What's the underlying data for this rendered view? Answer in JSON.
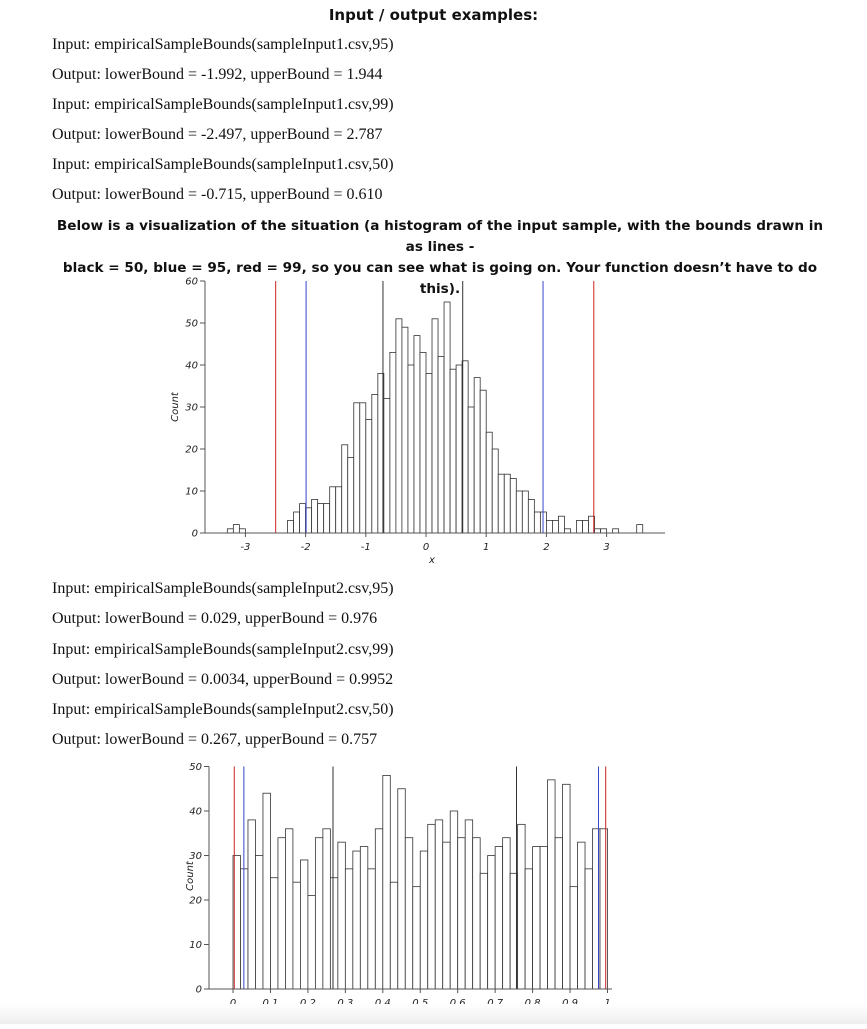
{
  "document": {
    "heading": "Input / output examples:",
    "examples1": [
      "Input: empiricalSampleBounds(sampleInput1.csv,95)",
      "Output: lowerBound = -1.992, upperBound = 1.944",
      "Input: empiricalSampleBounds(sampleInput1.csv,99)",
      "Output: lowerBound = -2.497, upperBound = 2.787",
      "Input: empiricalSampleBounds(sampleInput1.csv,50)",
      "Output: lowerBound = -0.715, upperBound = 0.610"
    ],
    "note_line1": "Below is a visualization of the situation (a histogram of the input sample, with the bounds drawn in as lines -",
    "note_line2": "black = 50, blue = 95, red = 99, so you can see what is going on. Your function doesn’t have to do this).",
    "examples2": [
      "Input: empiricalSampleBounds(sampleInput2.csv,95)",
      "Output: lowerBound = 0.029, upperBound = 0.976",
      "Input: empiricalSampleBounds(sampleInput2.csv,99)",
      "Output: lowerBound = 0.0034, upperBound = 0.9952",
      "Input: empiricalSampleBounds(sampleInput2.csv,50)",
      "Output: lowerBound = 0.267, upperBound = 0.757"
    ]
  },
  "colors": {
    "p50": "#333333",
    "p95": "#3344cc",
    "p99": "#cc2222"
  },
  "chart_data": [
    {
      "type": "bar",
      "xlabel": "x",
      "ylabel": "Count",
      "xlim": [
        -3.3,
        3.9
      ],
      "ylim": [
        0,
        60
      ],
      "xticks": [
        -3,
        -2,
        -1,
        0,
        1,
        2,
        3
      ],
      "yticks": [
        0,
        10,
        20,
        30,
        40,
        50,
        60
      ],
      "bin_width": 0.1,
      "bin_starts": [
        -3.3,
        -3.2,
        -3.1,
        -3.0,
        -2.9,
        -2.8,
        -2.7,
        -2.6,
        -2.5,
        -2.4,
        -2.3,
        -2.2,
        -2.1,
        -2.0,
        -1.9,
        -1.8,
        -1.7,
        -1.6,
        -1.5,
        -1.4,
        -1.3,
        -1.2,
        -1.1,
        -1.0,
        -0.9,
        -0.8,
        -0.7,
        -0.6,
        -0.5,
        -0.4,
        -0.3,
        -0.2,
        -0.1,
        0.0,
        0.1,
        0.2,
        0.3,
        0.4,
        0.5,
        0.6,
        0.7,
        0.8,
        0.9,
        1.0,
        1.1,
        1.2,
        1.3,
        1.4,
        1.5,
        1.6,
        1.7,
        1.8,
        1.9,
        2.0,
        2.1,
        2.2,
        2.3,
        2.4,
        2.5,
        2.6,
        2.7,
        2.8,
        2.9,
        3.0,
        3.1,
        3.2,
        3.3,
        3.4,
        3.5,
        3.6,
        3.7
      ],
      "values": [
        1,
        2,
        1,
        0,
        0,
        0,
        0,
        0,
        0,
        0,
        3,
        5,
        7,
        6,
        8,
        7,
        7,
        11,
        11,
        21,
        18,
        31,
        31,
        27,
        33,
        38,
        32,
        43,
        51,
        49,
        40,
        47,
        43,
        38,
        51,
        42,
        55,
        39,
        40,
        41,
        30,
        37,
        34,
        24,
        20,
        14,
        14,
        13,
        10,
        10,
        8,
        5,
        5,
        3,
        3,
        4,
        1,
        0,
        3,
        3,
        4,
        1,
        1,
        0,
        1,
        0,
        0,
        0,
        2,
        0,
        0
      ],
      "bounds": [
        {
          "percentile": 50,
          "lower": -0.715,
          "upper": 0.61
        },
        {
          "percentile": 95,
          "lower": -1.992,
          "upper": 1.944
        },
        {
          "percentile": 99,
          "lower": -2.497,
          "upper": 2.787
        }
      ]
    },
    {
      "type": "bar",
      "xlabel": "x",
      "ylabel": "Count",
      "xlim": [
        0,
        1
      ],
      "ylim": [
        0,
        50
      ],
      "xticks": [
        0,
        0.1,
        0.2,
        0.3,
        0.4,
        0.5,
        0.6,
        0.7,
        0.8,
        0.9,
        1
      ],
      "xtick_labels": [
        "0",
        "0.1",
        "0.2",
        "0.3",
        "0.4",
        "0.5",
        "0.6",
        "0.7",
        "0.8",
        "0.9",
        "1"
      ],
      "yticks": [
        0,
        10,
        20,
        30,
        40,
        50
      ],
      "bin_width": 0.02,
      "bin_starts": [
        0.0,
        0.02,
        0.04,
        0.06,
        0.08,
        0.1,
        0.12,
        0.14,
        0.16,
        0.18,
        0.2,
        0.22,
        0.24,
        0.26,
        0.28,
        0.3,
        0.32,
        0.34,
        0.36,
        0.38,
        0.4,
        0.42,
        0.44,
        0.46,
        0.48,
        0.5,
        0.52,
        0.54,
        0.56,
        0.58,
        0.6,
        0.62,
        0.64,
        0.66,
        0.68,
        0.7,
        0.72,
        0.74,
        0.76,
        0.78,
        0.8,
        0.82,
        0.84,
        0.86,
        0.88,
        0.9,
        0.92,
        0.94,
        0.96,
        0.98
      ],
      "values": [
        30,
        27,
        38,
        30,
        44,
        25,
        34,
        36,
        24,
        29,
        21,
        34,
        36,
        25,
        33,
        27,
        31,
        32,
        27,
        36,
        48,
        24,
        45,
        34,
        23,
        31,
        37,
        38,
        33,
        40,
        34,
        38,
        34,
        26,
        30,
        32,
        34,
        26,
        37,
        27,
        32,
        32,
        47,
        34,
        46,
        23,
        33,
        27,
        36,
        36
      ],
      "bounds": [
        {
          "percentile": 50,
          "lower": 0.267,
          "upper": 0.757
        },
        {
          "percentile": 95,
          "lower": 0.029,
          "upper": 0.976
        },
        {
          "percentile": 99,
          "lower": 0.0034,
          "upper": 0.9952
        }
      ]
    }
  ]
}
